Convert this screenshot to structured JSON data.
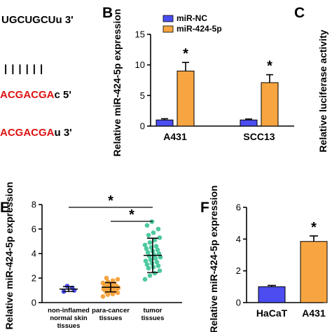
{
  "panel_letters": {
    "b": "B",
    "c": "C",
    "e": "E",
    "f": "F"
  },
  "sequences": {
    "top": "UGCUGCUu 3'",
    "pairing": "||||||",
    "mid_red": "ACGACGA",
    "mid_black": "c 5'",
    "bottom_red": "ACGACGA",
    "bottom_black": "u 3'"
  },
  "panel_c": {
    "ylabel": "Relative luciferase activity"
  },
  "colors": {
    "blue": "#4b4df0",
    "orange": "#f7a540",
    "green_dots": "#4ec9a0",
    "seq_red": "#dd1111"
  },
  "chart_data": [
    {
      "panel": "B",
      "type": "bar",
      "categories": [
        "A431",
        "SCC13"
      ],
      "series": [
        {
          "name": "miR-NC",
          "values": [
            1.0,
            1.0
          ],
          "errors": [
            0.2,
            0.15
          ],
          "color": "#4b4df0"
        },
        {
          "name": "miR-424-5p",
          "values": [
            9.0,
            7.1
          ],
          "errors": [
            1.4,
            1.3
          ],
          "color": "#f7a540"
        }
      ],
      "ylabel": "Relative miR-424-5p expression",
      "ylim": [
        0,
        15
      ],
      "yticks": [
        "0",
        "5",
        "10",
        "15"
      ],
      "significance": [
        "*",
        "*"
      ],
      "legend": "top-left"
    },
    {
      "panel": "E",
      "type": "scatter",
      "categories": [
        "non-inflamed normal skin tissues",
        "para-cancer tissues",
        "tumor tissues"
      ],
      "category_lines": [
        [
          "non-inflamed",
          "normal skin",
          "tissues"
        ],
        [
          "para-cancer",
          "tissues"
        ],
        [
          "tumor",
          "tissues"
        ]
      ],
      "means": [
        1.1,
        1.25,
        3.85
      ],
      "sd": [
        0.2,
        0.38,
        1.4
      ],
      "colors": [
        "#4b4df0",
        "#f7a540",
        "#4ec9a0"
      ],
      "points": [
        [
          0.9,
          1.2,
          1.35,
          1.0
        ],
        [
          0.5,
          0.65,
          0.7,
          0.8,
          0.85,
          0.9,
          0.95,
          1.0,
          1.0,
          1.05,
          1.1,
          1.1,
          1.15,
          1.2,
          1.2,
          1.25,
          1.3,
          1.3,
          1.35,
          1.4,
          1.45,
          1.5,
          1.55,
          1.6,
          1.7,
          1.8,
          1.9,
          2.0
        ],
        [
          1.9,
          2.2,
          2.4,
          2.6,
          2.8,
          2.9,
          3.0,
          3.1,
          3.2,
          3.3,
          3.4,
          3.5,
          3.6,
          3.7,
          3.8,
          3.9,
          4.0,
          4.1,
          4.2,
          4.3,
          4.4,
          4.5,
          4.6,
          4.7,
          4.9,
          5.1,
          5.3,
          5.5,
          5.7,
          6.0,
          6.3,
          6.6
        ]
      ],
      "ylabel": "Relative miR-424-5p expression",
      "ylim": [
        0,
        8
      ],
      "yticks": [
        "0",
        "2",
        "4",
        "6",
        "8"
      ],
      "significance": [
        {
          "from": 0,
          "to": 2,
          "label": "*"
        },
        {
          "from": 1,
          "to": 2,
          "label": "*"
        }
      ]
    },
    {
      "panel": "F",
      "type": "bar",
      "categories": [
        "HaCaT",
        "A431"
      ],
      "values": [
        1.0,
        3.85
      ],
      "errors": [
        0.08,
        0.35
      ],
      "colors": [
        "#4b4df0",
        "#f7a540"
      ],
      "ylabel": "Relative miR-424-5p expression",
      "ylim": [
        0,
        6
      ],
      "yticks": [
        "0",
        "2",
        "4",
        "6"
      ],
      "significance": [
        "",
        "*"
      ]
    }
  ]
}
